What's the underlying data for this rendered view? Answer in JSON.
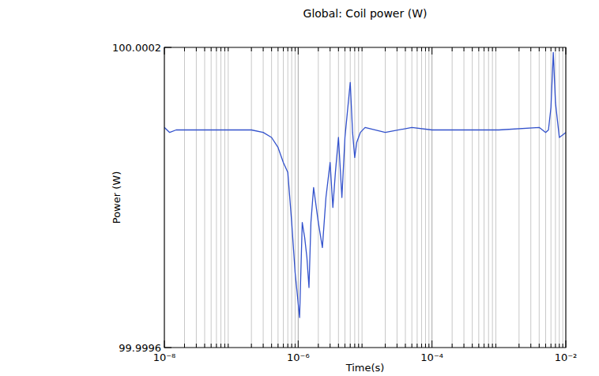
{
  "chart_data": {
    "type": "line",
    "title": "Global: Coil power (W)",
    "x_label": "Time(s)",
    "y_label": "Power (W)",
    "x": [
      1e-08,
      1.2e-08,
      1.5e-08,
      2e-08,
      5e-08,
      1e-07,
      2e-07,
      3e-07,
      4e-07,
      5e-07,
      6e-07,
      7e-07,
      8e-07,
      9e-07,
      1.05e-06,
      1.15e-06,
      1.25e-06,
      1.35e-06,
      1.45e-06,
      1.55e-06,
      1.7e-06,
      2e-06,
      2.3e-06,
      2.6e-06,
      3e-06,
      3.3e-06,
      3.6e-06,
      4e-06,
      4.5e-06,
      5e-06,
      6e-06,
      6.5e-06,
      7e-06,
      7.5e-06,
      8.5e-06,
      1e-05,
      2e-05,
      5e-05,
      0.0001,
      0.001,
      0.004,
      0.005,
      0.0055,
      0.006,
      0.0065,
      0.007,
      0.008,
      0.009,
      0.01
    ],
    "values": [
      100.00004,
      100.00003,
      100.000035,
      100.000035,
      100.000035,
      100.000035,
      100.000035,
      100.00003,
      100.00002,
      100.0,
      99.99997,
      99.99995,
      99.99985,
      99.99975,
      99.99966,
      99.99985,
      99.99982,
      99.99978,
      99.99972,
      99.99985,
      99.99992,
      99.99985,
      99.9998,
      99.9999,
      99.99997,
      99.99988,
      99.99995,
      100.00002,
      99.9999,
      100.00002,
      100.00013,
      100.00003,
      99.99998,
      100.00001,
      100.00003,
      100.00004,
      100.00003,
      100.00004,
      100.000035,
      100.000035,
      100.00004,
      100.00003,
      100.000035,
      100.00008,
      100.00019,
      100.00009,
      100.00002,
      100.000025,
      100.00003
    ],
    "color": "#3352cc",
    "xlim": [
      1e-08,
      0.01
    ],
    "ylim": [
      99.9996,
      100.0002
    ],
    "xticks": [
      {
        "value": 1e-08,
        "label": "10⁻⁸"
      },
      {
        "value": 1e-06,
        "label": "10⁻⁶"
      },
      {
        "value": 0.0001,
        "label": "10⁻⁴"
      },
      {
        "value": 0.01,
        "label": "10⁻²"
      }
    ],
    "yticks": [
      99.9996,
      100.0002
    ],
    "log": "x",
    "grid": true
  }
}
